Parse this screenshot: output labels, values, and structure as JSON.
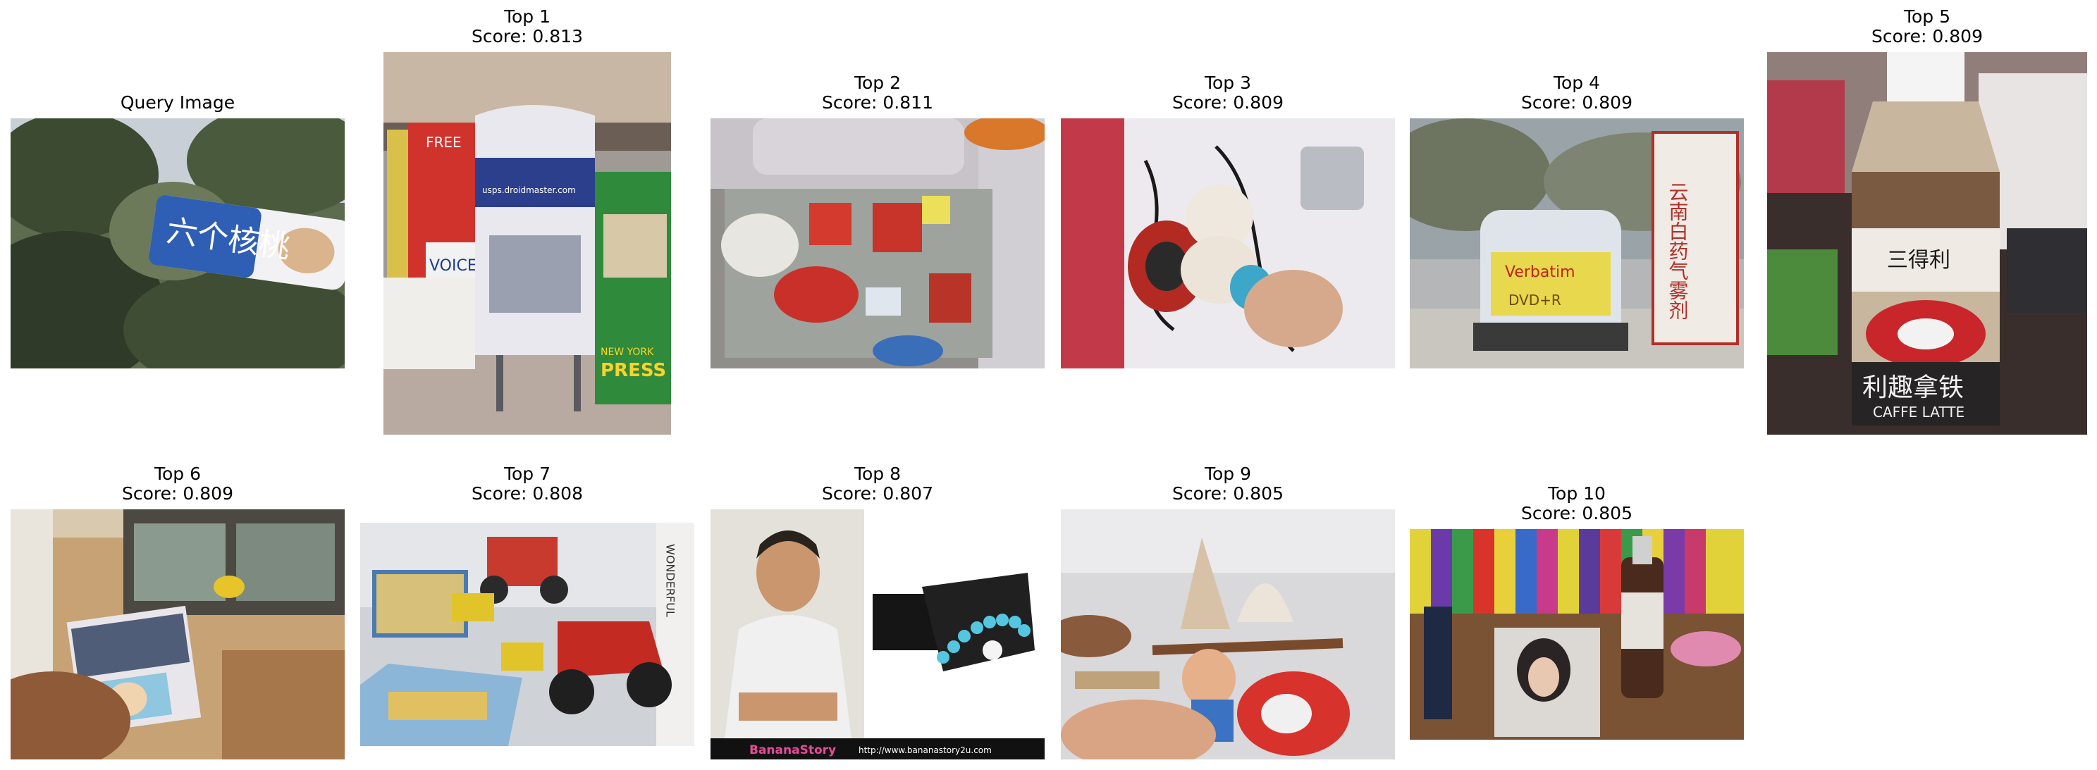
{
  "query": {
    "title": "Query Image"
  },
  "results": [
    {
      "rank_label": "Top 1",
      "score_label": "Score: 0.813",
      "score": 0.813
    },
    {
      "rank_label": "Top 2",
      "score_label": "Score: 0.811",
      "score": 0.811
    },
    {
      "rank_label": "Top 3",
      "score_label": "Score: 0.809",
      "score": 0.809
    },
    {
      "rank_label": "Top 4",
      "score_label": "Score: 0.809",
      "score": 0.809
    },
    {
      "rank_label": "Top 5",
      "score_label": "Score: 0.809",
      "score": 0.809
    },
    {
      "rank_label": "Top 6",
      "score_label": "Score: 0.809",
      "score": 0.809
    },
    {
      "rank_label": "Top 7",
      "score_label": "Score: 0.808",
      "score": 0.808
    },
    {
      "rank_label": "Top 8",
      "score_label": "Score: 0.807",
      "score": 0.807
    },
    {
      "rank_label": "Top 9",
      "score_label": "Score: 0.805",
      "score": 0.805
    },
    {
      "rank_label": "Top 10",
      "score_label": "Score: 0.805",
      "score": 0.805
    }
  ],
  "photo_text": {
    "query_can": "六个核桃",
    "top1_box_left": "FREE",
    "top1_box_voice": "VOICE",
    "top1_site": "usps.droidmaster.com",
    "top1_press": "PRESS",
    "top1_newyork": "NEW YORK",
    "top4_brand": "Verbatim",
    "top4_disc": "DVD+R",
    "top4_box": "云南白药气雾剂",
    "top5_brand": "三得利",
    "top5_product": "利趣拿铁",
    "top5_sub": "CAFFE LATTE",
    "top7_book": "WONDERFUL",
    "top8_brand": "BananaStory",
    "top8_url": "http://www.bananastory2u.com"
  }
}
